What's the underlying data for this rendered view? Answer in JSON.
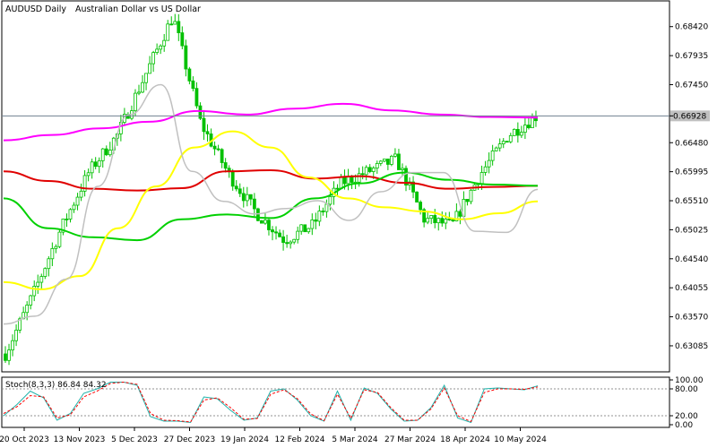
{
  "chart_data": {
    "type": "line",
    "symbol": "AUDUSD",
    "timeframe": "Daily",
    "description": "Australian Dollar vs US Dollar",
    "x_labels": [
      "20 Oct 2023",
      "13 Nov 2023",
      "5 Dec 2023",
      "27 Dec 2023",
      "19 Jan 2024",
      "12 Feb 2024",
      "5 Mar 2024",
      "27 Mar 2024",
      "18 Apr 2024",
      "10 May 2024"
    ],
    "y_ticks": [
      "0.68420",
      "0.67935",
      "0.67450",
      "0.66928",
      "0.66480",
      "0.65995",
      "0.65510",
      "0.65025",
      "0.64540",
      "0.64055",
      "0.63570",
      "0.63085"
    ],
    "ylim": [
      0.6265,
      0.6885
    ],
    "current_price": 0.66928,
    "colors": {
      "candles": "#00c000",
      "ma_slow": "#ff00ff",
      "ma_mid": "#e00000",
      "ma_green": "#00d000",
      "ma_yellow": "#ffff00",
      "ma_fast": "#c0c0c0",
      "stoch_main": "#20b2aa",
      "stoch_signal": "#ff0000"
    },
    "series": [
      {
        "values": [
          0.6652,
          0.6661,
          0.6672,
          0.6683,
          0.6701,
          0.6695,
          0.6705,
          0.6713,
          0.6702,
          0.6695,
          0.6691,
          0.669
        ]
      },
      {
        "values": [
          0.66,
          0.6584,
          0.6571,
          0.6568,
          0.6572,
          0.66,
          0.6602,
          0.6588,
          0.6592,
          0.6581,
          0.6571,
          0.6574,
          0.6576
        ]
      },
      {
        "values": [
          0.6555,
          0.6505,
          0.649,
          0.6485,
          0.652,
          0.6528,
          0.6522,
          0.6555,
          0.658,
          0.6598,
          0.6586,
          0.6578,
          0.6576
        ]
      },
      {
        "values": [
          0.6415,
          0.6403,
          0.6425,
          0.6505,
          0.6575,
          0.664,
          0.6667,
          0.664,
          0.659,
          0.6555,
          0.654,
          0.6533,
          0.652,
          0.653,
          0.655
        ]
      },
      {
        "values": [
          0.6345,
          0.6358,
          0.642,
          0.6575,
          0.6695,
          0.6745,
          0.66,
          0.655,
          0.6529,
          0.6538,
          0.6551,
          0.6518,
          0.6566,
          0.6598,
          0.6598,
          0.65,
          0.6498,
          0.657
        ]
      },
      {
        "values": [
          0.6295,
          0.6395,
          0.6505,
          0.66,
          0.666,
          0.676,
          0.686,
          0.668,
          0.6595,
          0.653,
          0.6485,
          0.651,
          0.658,
          0.66,
          0.662,
          0.652,
          0.651,
          0.6595,
          0.666,
          0.6692
        ]
      }
    ],
    "candle_colors": "#00c000",
    "stochastic": {
      "label": "Stoch(8,3,3) 86.84 84.32",
      "levels": [
        "100.00",
        "80.00",
        "20.00",
        "0.00"
      ],
      "main": [
        20,
        45,
        75,
        60,
        10,
        25,
        70,
        80,
        95,
        95,
        88,
        18,
        8,
        8,
        5,
        62,
        58,
        32,
        10,
        15,
        75,
        80,
        55,
        20,
        8,
        75,
        10,
        82,
        70,
        35,
        8,
        10,
        38,
        88,
        15,
        5,
        80,
        82,
        80,
        78,
        86.84
      ],
      "signal": [
        25,
        40,
        65,
        62,
        15,
        22,
        62,
        75,
        92,
        95,
        90,
        25,
        10,
        9,
        6,
        55,
        60,
        38,
        12,
        14,
        68,
        78,
        58,
        24,
        9,
        68,
        14,
        78,
        72,
        38,
        10,
        10,
        35,
        82,
        20,
        7,
        72,
        80,
        80,
        79,
        84.32
      ]
    }
  }
}
